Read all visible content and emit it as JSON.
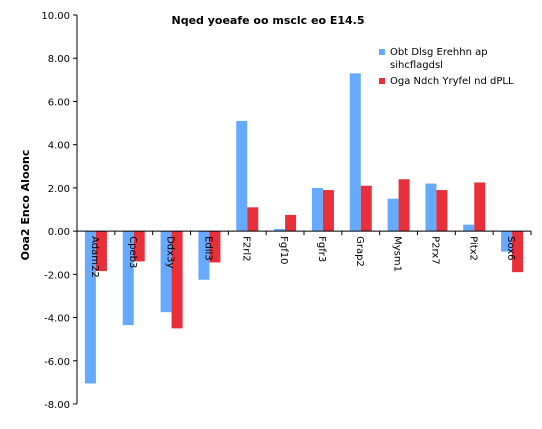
{
  "chart_data": {
    "type": "bar",
    "title": "Nqed yoeafe oo msclc eo E14.5",
    "ylabel": "Ooa2 Enco Aloonc",
    "xlabel": "",
    "ylim": [
      -8,
      10
    ],
    "yticks": [
      "10.00",
      "8.00",
      "6.00",
      "4.00",
      "2.00",
      "0.00",
      "-2.00",
      "-4.00",
      "-6.00",
      "-8.00"
    ],
    "categories": [
      "Adam22",
      "Cpeb3",
      "Ddx3y",
      "Edil3",
      "F2rl2",
      "Fgf10",
      "Fgfr3",
      "Grap2",
      "Mysm1",
      "P2rx7",
      "Pitx2",
      "Sox6"
    ],
    "series": [
      {
        "name": "Obt Dlsg Erehhn ap sihcflagdsl",
        "name_lines": [
          "Obt Dlsg Erehhn ap",
          "sihcflagdsl"
        ],
        "color": "#66aaff",
        "values": [
          -7.05,
          -4.35,
          -3.75,
          -2.25,
          5.1,
          0.1,
          2.0,
          7.3,
          1.5,
          2.2,
          0.3,
          -0.95
        ]
      },
      {
        "name": "Oga Ndch Yryfel nd dPLL",
        "name_lines": [
          "Oga Ndch Yryfel nd dPLL"
        ],
        "color": "#e8303a",
        "values": [
          -1.85,
          -1.4,
          -4.5,
          -1.45,
          1.1,
          0.75,
          1.9,
          2.1,
          2.4,
          1.9,
          2.25,
          -1.9
        ]
      }
    ],
    "legend_position": "top-right",
    "grid": false
  }
}
